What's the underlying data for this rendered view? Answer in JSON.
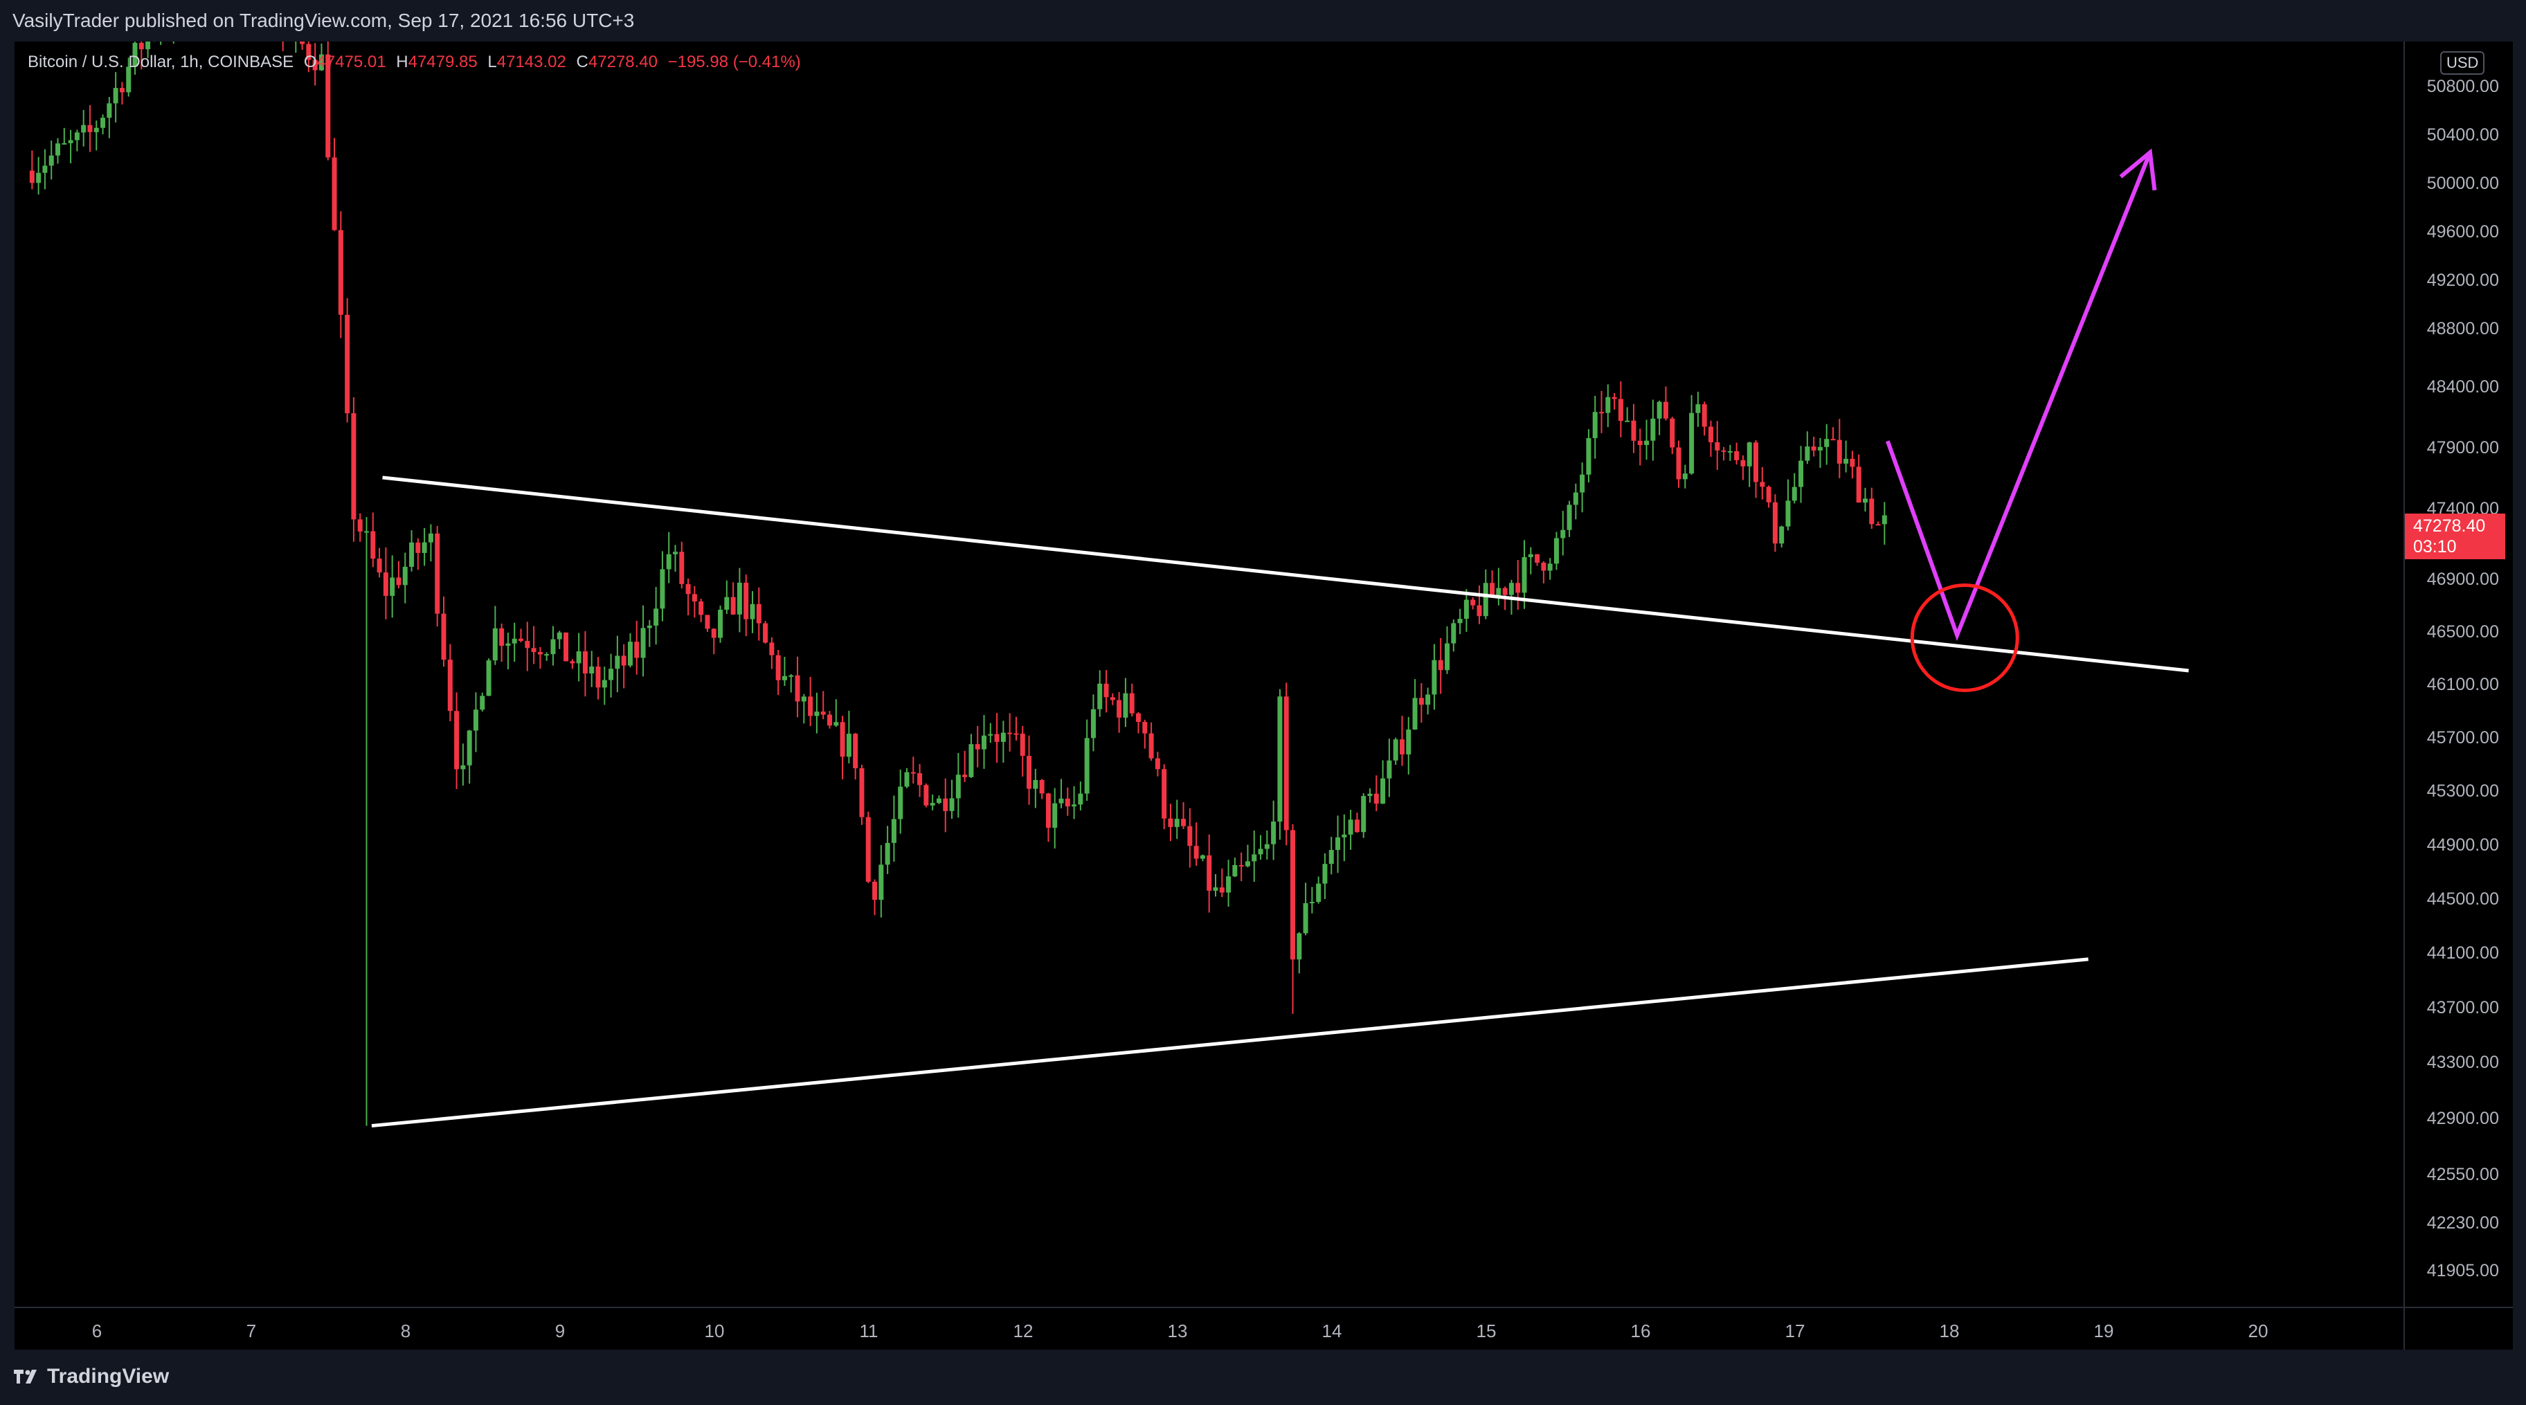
{
  "header": {
    "published": "VasilyTrader published on TradingView.com, Sep 17, 2021 16:56 UTC+3"
  },
  "legend": {
    "symbol": "Bitcoin / U.S. Dollar, 1h, COINBASE",
    "open_label": "O",
    "open": "47475.01",
    "high_label": "H",
    "high": "47479.85",
    "low_label": "L",
    "low": "47143.02",
    "close_label": "C",
    "close": "47278.40",
    "change": "−195.98 (−0.41%)"
  },
  "price_axis": {
    "currency": "USD",
    "last_price": "47278.40",
    "countdown": "03:10"
  },
  "footer": {
    "brand": "TradingView"
  },
  "colors": {
    "background": "#000000",
    "up": "#4caf50",
    "down": "#f23645",
    "trendline": "#ffffff",
    "arrow": "#e040fb",
    "circle": "#ff1f1f"
  },
  "chart_data": {
    "type": "candlestick",
    "instrument": "Bitcoin / U.S. Dollar",
    "timeframe": "1h",
    "exchange": "COINBASE",
    "x_ticks": [
      "6",
      "7",
      "8",
      "9",
      "10",
      "11",
      "12",
      "13",
      "14",
      "15",
      "16",
      "17",
      "18",
      "19",
      "20"
    ],
    "y_ticks": [
      "50800.00",
      "50400.00",
      "50000.00",
      "49600.00",
      "49200.00",
      "48800.00",
      "48400.00",
      "47900.00",
      "47400.00",
      "46900.00",
      "46500.00",
      "46100.00",
      "45700.00",
      "45300.00",
      "44900.00",
      "44500.00",
      "44100.00",
      "43700.00",
      "43300.00",
      "42900.00",
      "42550.00",
      "42230.00",
      "41905.00"
    ],
    "y_range": [
      41700,
      51100
    ],
    "price_path": [
      {
        "day": 5.58,
        "price": 50100
      },
      {
        "day": 5.8,
        "price": 50250
      },
      {
        "day": 6.0,
        "price": 50400
      },
      {
        "day": 6.4,
        "price": 51300
      },
      {
        "day": 7.0,
        "price": 51500
      },
      {
        "day": 7.5,
        "price": 51000
      },
      {
        "day": 7.7,
        "price": 47400
      },
      {
        "day": 7.9,
        "price": 46800
      },
      {
        "day": 8.2,
        "price": 47200
      },
      {
        "day": 8.4,
        "price": 45300
      },
      {
        "day": 8.6,
        "price": 46500
      },
      {
        "day": 9.0,
        "price": 46400
      },
      {
        "day": 9.3,
        "price": 46100
      },
      {
        "day": 9.55,
        "price": 46350
      },
      {
        "day": 9.75,
        "price": 47100
      },
      {
        "day": 10.0,
        "price": 46400
      },
      {
        "day": 10.2,
        "price": 46800
      },
      {
        "day": 10.45,
        "price": 46200
      },
      {
        "day": 10.7,
        "price": 45800
      },
      {
        "day": 10.95,
        "price": 45600
      },
      {
        "day": 11.05,
        "price": 44500
      },
      {
        "day": 11.3,
        "price": 45400
      },
      {
        "day": 11.5,
        "price": 45200
      },
      {
        "day": 11.8,
        "price": 45800
      },
      {
        "day": 12.0,
        "price": 45600
      },
      {
        "day": 12.2,
        "price": 45100
      },
      {
        "day": 12.4,
        "price": 45200
      },
      {
        "day": 12.5,
        "price": 46000
      },
      {
        "day": 12.8,
        "price": 45900
      },
      {
        "day": 12.95,
        "price": 45200
      },
      {
        "day": 13.3,
        "price": 44500
      },
      {
        "day": 13.65,
        "price": 44900
      },
      {
        "day": 13.7,
        "price": 46000
      },
      {
        "day": 13.78,
        "price": 44100
      },
      {
        "day": 14.0,
        "price": 44800
      },
      {
        "day": 14.2,
        "price": 45100
      },
      {
        "day": 14.4,
        "price": 45400
      },
      {
        "day": 14.6,
        "price": 46000
      },
      {
        "day": 14.9,
        "price": 46600
      },
      {
        "day": 15.1,
        "price": 46800
      },
      {
        "day": 15.35,
        "price": 47000
      },
      {
        "day": 15.55,
        "price": 47200
      },
      {
        "day": 15.8,
        "price": 48300
      },
      {
        "day": 16.0,
        "price": 48000
      },
      {
        "day": 16.2,
        "price": 48200
      },
      {
        "day": 16.3,
        "price": 47600
      },
      {
        "day": 16.4,
        "price": 48300
      },
      {
        "day": 16.6,
        "price": 47800
      },
      {
        "day": 16.75,
        "price": 47900
      },
      {
        "day": 16.9,
        "price": 47200
      },
      {
        "day": 17.2,
        "price": 48000
      },
      {
        "day": 17.4,
        "price": 47700
      },
      {
        "day": 17.58,
        "price": 47278
      }
    ],
    "annotations": {
      "upper_trendline": [
        {
          "day": 7.85,
          "price": 47650
        },
        {
          "day": 19.55,
          "price": 46200
        }
      ],
      "lower_trendline": [
        {
          "day": 7.78,
          "price": 42850
        },
        {
          "day": 18.9,
          "price": 44050
        }
      ],
      "arrow_path": [
        {
          "day": 17.6,
          "price": 47950
        },
        {
          "day": 18.05,
          "price": 46470
        },
        {
          "day": 19.3,
          "price": 50250
        }
      ],
      "circle": {
        "day": 18.1,
        "price": 46450
      }
    }
  }
}
